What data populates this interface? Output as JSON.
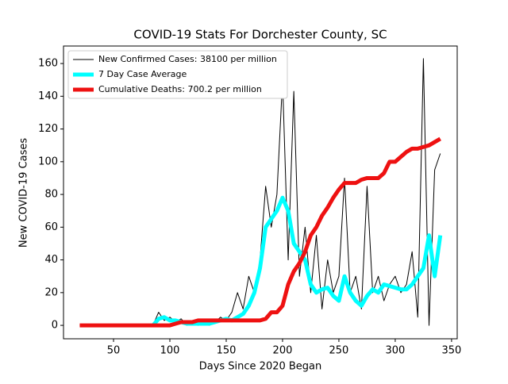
{
  "chart_data": {
    "type": "line",
    "title": "COVID-19 Stats For Dorchester County, SC",
    "xlabel": "Days Since 2020 Began",
    "ylabel": "New COVID-19 Cases",
    "x": [
      20,
      25,
      30,
      35,
      40,
      45,
      50,
      55,
      60,
      65,
      70,
      75,
      80,
      85,
      90,
      95,
      100,
      105,
      110,
      115,
      120,
      125,
      130,
      135,
      140,
      145,
      150,
      155,
      160,
      165,
      170,
      175,
      180,
      185,
      190,
      195,
      200,
      205,
      210,
      215,
      220,
      225,
      230,
      235,
      240,
      245,
      250,
      255,
      260,
      265,
      270,
      275,
      280,
      285,
      290,
      295,
      300,
      305,
      310,
      315,
      320,
      325,
      330,
      335,
      340
    ],
    "series": [
      {
        "name": "New Confirmed Cases: 38100 per million",
        "color": "#000000",
        "width": 1,
        "values": [
          0,
          0,
          0,
          0,
          0,
          0,
          0,
          0,
          0,
          0,
          0,
          0,
          0,
          0,
          8,
          3,
          5,
          2,
          4,
          0,
          1,
          0,
          3,
          0,
          2,
          5,
          3,
          8,
          20,
          10,
          30,
          20,
          40,
          85,
          60,
          80,
          150,
          40,
          143,
          30,
          60,
          20,
          55,
          10,
          40,
          20,
          30,
          90,
          20,
          30,
          10,
          85,
          20,
          30,
          15,
          25,
          30,
          20,
          25,
          45,
          5,
          163,
          0,
          95,
          105
        ]
      },
      {
        "name": "7 Day Case Average",
        "color": "#00ffff",
        "width": 5,
        "values": [
          null,
          null,
          null,
          null,
          null,
          null,
          null,
          null,
          null,
          null,
          null,
          null,
          null,
          0,
          4,
          5,
          3,
          3,
          2,
          1,
          1,
          1,
          1,
          1,
          2,
          3,
          4,
          3,
          5,
          7,
          12,
          20,
          35,
          60,
          65,
          70,
          78,
          70,
          50,
          45,
          40,
          25,
          20,
          22,
          23,
          18,
          15,
          30,
          20,
          15,
          12,
          18,
          22,
          20,
          25,
          24,
          23,
          22,
          22,
          25,
          30,
          35,
          55,
          30,
          55
        ]
      },
      {
        "name": "Cumulative Deaths: 700.2 per million",
        "color": "#ee1111",
        "width": 5,
        "values": [
          0,
          0,
          0,
          0,
          0,
          0,
          0,
          0,
          0,
          0,
          0,
          0,
          0,
          0,
          0,
          0,
          0,
          1,
          2,
          2,
          2,
          3,
          3,
          3,
          3,
          3,
          3,
          3,
          3,
          3,
          3,
          3,
          3,
          4,
          8,
          8,
          12,
          25,
          33,
          38,
          45,
          55,
          60,
          67,
          72,
          78,
          83,
          87,
          87,
          87,
          89,
          90,
          90,
          90,
          93,
          100,
          100,
          103,
          106,
          108,
          108,
          109,
          110,
          112,
          114
        ]
      }
    ],
    "xlim": [
      5.6,
      355
    ],
    "ylim": [
      -8.2,
      170.7
    ],
    "xticks": [
      50,
      100,
      150,
      200,
      250,
      300,
      350
    ],
    "yticks": [
      0,
      20,
      40,
      60,
      80,
      100,
      120,
      140,
      160
    ],
    "legend": "upper left"
  }
}
